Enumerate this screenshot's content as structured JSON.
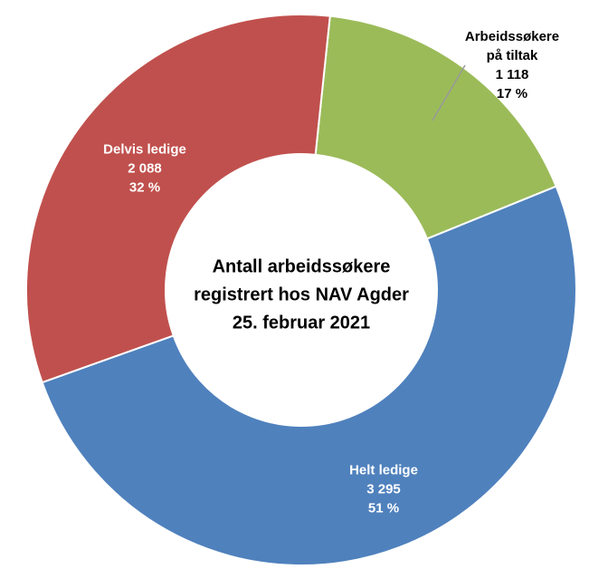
{
  "chart_data": {
    "type": "donut",
    "title": [
      "Antall arbeidssøkere",
      "registrert hos NAV Agder",
      "25. februar 2021"
    ],
    "categories": [
      "Arbeidssøkere på tiltak",
      "Helt ledige",
      "Delvis ledige"
    ],
    "values": [
      1118,
      3295,
      2088
    ],
    "value_labels": [
      "1 118",
      "3 295",
      "2 088"
    ],
    "percents": [
      17,
      51,
      32
    ],
    "percent_labels": [
      "17 %",
      "51 %",
      "32 %"
    ],
    "colors": [
      "#9bbb59",
      "#4f81bd",
      "#c0504d"
    ]
  }
}
